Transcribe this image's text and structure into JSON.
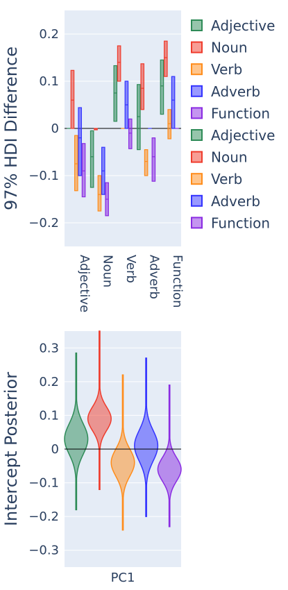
{
  "colors": {
    "plot_bg": "#e5ecf6",
    "grid": "#ffffff",
    "zero_line": "#000000",
    "text": "#2a3f5f"
  },
  "legend": {
    "items": [
      {
        "label": "Adjective",
        "color": "#2e8b57"
      },
      {
        "label": "Noun",
        "color": "#ef3b2c"
      },
      {
        "label": "Verb",
        "color": "#ff8c1a"
      },
      {
        "label": "Adverb",
        "color": "#3333ff"
      },
      {
        "label": "Function",
        "color": "#8a2be2"
      },
      {
        "label": "Adjective",
        "color": "#2e8b57"
      },
      {
        "label": "Noun",
        "color": "#ef3b2c"
      },
      {
        "label": "Verb",
        "color": "#ff8c1a"
      },
      {
        "label": "Adverb",
        "color": "#3333ff"
      },
      {
        "label": "Function",
        "color": "#8a2be2"
      }
    ]
  },
  "chart_data": [
    {
      "type": "bar",
      "ylabel": "97% HDI Difference",
      "xlabel": "",
      "ylim": [
        -0.25,
        0.25
      ],
      "yticks": [
        0.2,
        0.1,
        0,
        -0.1,
        -0.2
      ],
      "ytick_labels": [
        "0.2",
        "0.1",
        "0",
        "−0.1",
        "−0.2"
      ],
      "categories": [
        "Adjective",
        "Noun",
        "Verb",
        "Adverb",
        "Function"
      ],
      "series": [
        {
          "name": "Adjective",
          "color": "#2e8b57",
          "low": [
            0.0,
            -0.125,
            0.015,
            -0.045,
            0.03
          ],
          "high": [
            0.0,
            -0.005,
            0.133,
            0.093,
            0.145
          ],
          "mid": [
            0.0,
            -0.06,
            0.075,
            0.025,
            0.09
          ]
        },
        {
          "name": "Noun",
          "color": "#ef3b2c",
          "low": [
            0.0,
            -0.003,
            0.1,
            0.04,
            0.11
          ],
          "high": [
            0.123,
            0.0,
            0.175,
            0.137,
            0.185
          ],
          "mid": [
            0.06,
            -0.001,
            0.14,
            0.085,
            0.15
          ]
        },
        {
          "name": "Verb",
          "color": "#ff8c1a",
          "low": [
            -0.132,
            -0.175,
            0.0,
            -0.1,
            -0.022
          ],
          "high": [
            -0.015,
            -0.1,
            0.0,
            -0.045,
            0.04
          ],
          "mid": [
            -0.075,
            -0.14,
            0.0,
            -0.07,
            0.01
          ]
        },
        {
          "name": "Adverb",
          "color": "#3333ff",
          "low": [
            -0.1,
            -0.14,
            0.0,
            0.0,
            0.0
          ],
          "high": [
            0.044,
            -0.04,
            0.1,
            0.0,
            0.11
          ],
          "mid": [
            -0.02,
            -0.09,
            0.05,
            0.0,
            0.06
          ]
        },
        {
          "name": "Function",
          "color": "#8a2be2",
          "low": [
            -0.145,
            -0.185,
            -0.043,
            -0.112,
            0.0
          ],
          "high": [
            -0.032,
            -0.115,
            0.02,
            -0.02,
            0.0
          ],
          "mid": [
            -0.09,
            -0.15,
            -0.01,
            -0.06,
            0.0
          ]
        }
      ]
    },
    {
      "type": "violin",
      "ylabel": "Intercept Posterior",
      "xlabel": "PC1",
      "ylim": [
        -0.35,
        0.35
      ],
      "yticks": [
        0.3,
        0.2,
        0.1,
        0,
        -0.1,
        -0.2,
        -0.3
      ],
      "ytick_labels": [
        "0.3",
        "0.2",
        "0.1",
        "0",
        "−0.1",
        "−0.2",
        "−0.3"
      ],
      "series": [
        {
          "name": "Adjective",
          "color": "#2e8b57",
          "min": -0.18,
          "max": 0.285,
          "mean": 0.03,
          "sd": 0.045
        },
        {
          "name": "Noun",
          "color": "#ef3b2c",
          "min": -0.12,
          "max": 0.35,
          "mean": 0.09,
          "sd": 0.035
        },
        {
          "name": "Verb",
          "color": "#ff8c1a",
          "min": -0.24,
          "max": 0.22,
          "mean": -0.04,
          "sd": 0.04
        },
        {
          "name": "Adverb",
          "color": "#3333ff",
          "min": -0.2,
          "max": 0.27,
          "mean": 0.01,
          "sd": 0.045
        },
        {
          "name": "Function",
          "color": "#8a2be2",
          "min": -0.23,
          "max": 0.19,
          "mean": -0.06,
          "sd": 0.035
        }
      ]
    }
  ]
}
